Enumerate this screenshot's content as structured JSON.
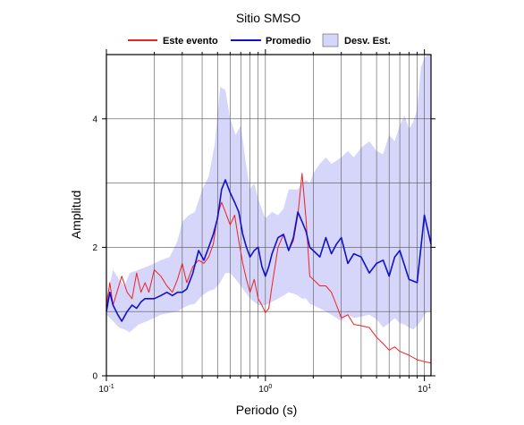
{
  "chart_data": {
    "type": "line",
    "title": "Sitio SMSO",
    "xlabel": "Periodo (s)",
    "ylabel": "Amplitud",
    "xscale": "log",
    "xlim": [
      0.1,
      11
    ],
    "ylim": [
      0,
      5
    ],
    "grid": true,
    "legend_position": "top",
    "x_ticks": [
      {
        "base": "10",
        "exp": "-1",
        "value": 0.1
      },
      {
        "base": "10",
        "exp": "0",
        "value": 1
      },
      {
        "base": "10",
        "exp": "1",
        "value": 10
      }
    ],
    "y_ticks": [
      {
        "label": "0",
        "value": 0
      },
      {
        "label": "2",
        "value": 2
      },
      {
        "label": "4",
        "value": 4
      }
    ],
    "legend": {
      "event": "Este evento",
      "mean": "Promedio",
      "std": "Desv. Est."
    },
    "colors": {
      "event": "#ee2222",
      "mean": "#1111cc",
      "band": "#d6d6fa"
    },
    "series": [
      {
        "name": "Este evento",
        "x": [
          0.1,
          0.105,
          0.11,
          0.118,
          0.125,
          0.135,
          0.145,
          0.155,
          0.165,
          0.175,
          0.185,
          0.2,
          0.22,
          0.24,
          0.26,
          0.28,
          0.3,
          0.32,
          0.35,
          0.38,
          0.41,
          0.44,
          0.47,
          0.5,
          0.53,
          0.56,
          0.6,
          0.64,
          0.68,
          0.72,
          0.76,
          0.8,
          0.85,
          0.9,
          0.95,
          1.0,
          1.05,
          1.1,
          1.2,
          1.3,
          1.4,
          1.5,
          1.6,
          1.7,
          1.8,
          1.9,
          2.0,
          2.2,
          2.4,
          2.6,
          2.8,
          3.0,
          3.3,
          3.6,
          4.0,
          4.5,
          5.0,
          5.5,
          6.0,
          6.5,
          7.0,
          8.0,
          9.0,
          10.0,
          11.0
        ],
        "y": [
          1.1,
          1.45,
          1.1,
          1.35,
          1.55,
          1.3,
          1.2,
          1.6,
          1.3,
          1.45,
          1.3,
          1.65,
          1.55,
          1.4,
          1.3,
          1.5,
          1.75,
          1.45,
          1.7,
          1.8,
          1.75,
          1.85,
          2.05,
          2.5,
          2.7,
          2.55,
          2.35,
          2.5,
          2.1,
          1.75,
          1.5,
          1.3,
          1.5,
          1.2,
          1.1,
          0.98,
          1.05,
          1.4,
          2.0,
          2.2,
          1.95,
          2.1,
          2.5,
          3.15,
          2.45,
          1.55,
          1.5,
          1.4,
          1.4,
          1.3,
          1.1,
          0.9,
          0.95,
          0.8,
          0.78,
          0.75,
          0.6,
          0.5,
          0.4,
          0.45,
          0.38,
          0.32,
          0.25,
          0.22,
          0.2
        ]
      },
      {
        "name": "Promedio",
        "x": [
          0.1,
          0.105,
          0.11,
          0.118,
          0.125,
          0.135,
          0.145,
          0.155,
          0.165,
          0.175,
          0.185,
          0.2,
          0.22,
          0.24,
          0.26,
          0.28,
          0.3,
          0.32,
          0.35,
          0.38,
          0.41,
          0.44,
          0.47,
          0.5,
          0.53,
          0.56,
          0.6,
          0.64,
          0.68,
          0.72,
          0.76,
          0.8,
          0.85,
          0.9,
          0.95,
          1.0,
          1.05,
          1.1,
          1.2,
          1.3,
          1.4,
          1.5,
          1.6,
          1.7,
          1.8,
          1.9,
          2.0,
          2.2,
          2.4,
          2.6,
          2.8,
          3.0,
          3.3,
          3.6,
          4.0,
          4.5,
          5.0,
          5.5,
          6.0,
          6.5,
          7.0,
          8.0,
          9.0,
          10.0,
          11.0
        ],
        "y": [
          1.0,
          1.3,
          1.1,
          0.95,
          0.85,
          1.0,
          1.1,
          1.05,
          1.15,
          1.2,
          1.2,
          1.2,
          1.25,
          1.3,
          1.25,
          1.3,
          1.3,
          1.35,
          1.6,
          1.95,
          1.8,
          2.0,
          2.2,
          2.45,
          2.9,
          3.05,
          2.85,
          2.7,
          2.55,
          2.2,
          2.0,
          1.85,
          1.95,
          2.0,
          1.7,
          1.55,
          1.7,
          1.9,
          2.15,
          2.2,
          1.95,
          2.15,
          2.55,
          2.4,
          2.25,
          2.0,
          1.95,
          1.85,
          2.15,
          1.9,
          2.05,
          2.15,
          1.75,
          1.9,
          1.85,
          1.6,
          1.75,
          1.8,
          1.55,
          1.85,
          1.95,
          1.5,
          1.45,
          2.5,
          2.05
        ]
      },
      {
        "name": "Desv. Est.",
        "x": [
          0.1,
          0.11,
          0.12,
          0.13,
          0.14,
          0.16,
          0.18,
          0.2,
          0.22,
          0.25,
          0.28,
          0.3,
          0.33,
          0.36,
          0.4,
          0.44,
          0.48,
          0.52,
          0.56,
          0.6,
          0.65,
          0.7,
          0.75,
          0.8,
          0.85,
          0.9,
          1.0,
          1.1,
          1.2,
          1.3,
          1.4,
          1.5,
          1.6,
          1.7,
          1.8,
          1.9,
          2.0,
          2.2,
          2.4,
          2.6,
          2.8,
          3.0,
          3.3,
          3.6,
          4.0,
          4.5,
          5.0,
          5.5,
          6.0,
          6.5,
          7.0,
          7.5,
          8.0,
          8.5,
          9.0,
          9.5,
          10.0,
          10.5,
          11.0
        ],
        "upper": [
          1.2,
          1.65,
          1.5,
          1.4,
          1.6,
          1.65,
          1.7,
          1.75,
          1.8,
          1.85,
          2.1,
          2.4,
          2.5,
          2.55,
          2.9,
          3.1,
          3.6,
          4.5,
          4.45,
          4.0,
          3.75,
          3.9,
          3.35,
          2.9,
          3.0,
          2.75,
          2.45,
          2.55,
          2.5,
          2.6,
          2.9,
          2.9,
          2.9,
          3.0,
          3.05,
          3.0,
          3.15,
          3.3,
          3.4,
          3.3,
          3.35,
          3.4,
          3.5,
          3.4,
          3.55,
          3.65,
          3.5,
          3.45,
          3.75,
          3.65,
          3.9,
          4.05,
          3.85,
          3.95,
          4.15,
          4.8,
          4.95,
          5.0,
          5.0
        ],
        "lower": [
          0.95,
          0.85,
          0.75,
          0.72,
          0.68,
          0.8,
          0.85,
          0.9,
          0.95,
          0.98,
          1.0,
          1.05,
          1.1,
          1.12,
          1.25,
          1.32,
          1.35,
          1.45,
          1.6,
          1.6,
          1.5,
          1.4,
          1.3,
          1.2,
          1.15,
          1.1,
          1.1,
          1.15,
          1.2,
          1.25,
          1.3,
          1.28,
          1.25,
          1.2,
          1.2,
          1.12,
          1.1,
          1.05,
          1.0,
          0.95,
          0.9,
          0.85,
          0.95,
          0.9,
          0.92,
          0.95,
          0.88,
          0.75,
          0.82,
          0.9,
          0.82,
          0.8,
          0.75,
          0.72,
          0.78,
          0.85,
          0.95,
          1.0,
          1.0
        ]
      }
    ]
  }
}
